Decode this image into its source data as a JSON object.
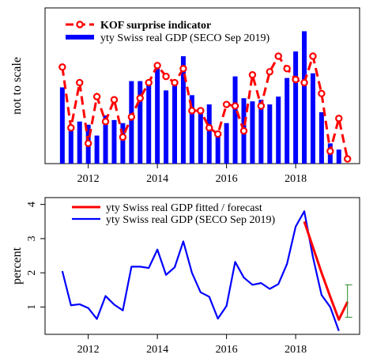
{
  "colors": {
    "kof": "#ff0000",
    "gdp": "#0000ff",
    "fit": "#ff0000",
    "band": "#228b22",
    "axis": "#000000"
  },
  "chart_data": [
    {
      "id": "top",
      "type": "bar",
      "ylabel": "not to scale",
      "xlim": [
        2010.75,
        2019.85
      ],
      "x_ticks": [
        2012,
        2014,
        2016,
        2018
      ],
      "x_tick_labels": [
        "2012",
        "2014",
        "2016",
        "2018"
      ],
      "ylim": [
        0,
        100
      ],
      "legend": {
        "placement": "top-left",
        "entries": [
          {
            "label": "KOF surprise indicator",
            "series": "kof",
            "bold": true
          },
          {
            "label": "yty Swiss real GDP (SECO Sep 2019)",
            "series": "gdp",
            "bold": false
          }
        ]
      },
      "x": [
        2011.25,
        2011.5,
        2011.75,
        2012.0,
        2012.25,
        2012.5,
        2012.75,
        2013.0,
        2013.25,
        2013.5,
        2013.75,
        2014.0,
        2014.25,
        2014.5,
        2014.75,
        2015.0,
        2015.25,
        2015.5,
        2015.75,
        2016.0,
        2016.25,
        2016.5,
        2016.75,
        2017.0,
        2017.25,
        2017.5,
        2017.75,
        2018.0,
        2018.25,
        2018.5,
        2018.75,
        2019.0,
        2019.25
      ],
      "gdp_values": [
        49,
        25,
        27,
        25,
        18,
        31,
        28,
        26,
        53,
        53,
        52,
        62,
        47,
        52,
        69,
        44,
        36,
        38,
        18,
        26,
        56,
        42,
        40,
        41,
        38,
        43,
        55,
        72,
        85,
        58,
        33,
        13,
        9
      ],
      "kof_x": [
        2011.25,
        2011.5,
        2011.75,
        2012.0,
        2012.25,
        2012.5,
        2012.75,
        2013.0,
        2013.25,
        2013.5,
        2013.75,
        2014.0,
        2014.25,
        2014.5,
        2014.75,
        2015.0,
        2015.25,
        2015.5,
        2015.75,
        2016.0,
        2016.25,
        2016.5,
        2016.75,
        2017.0,
        2017.25,
        2017.5,
        2017.75,
        2018.0,
        2018.25,
        2018.5,
        2018.75,
        2019.0,
        2019.25,
        2019.5
      ],
      "kof_values": [
        62,
        23,
        52,
        13,
        43,
        27,
        41,
        17,
        30,
        42,
        52,
        63,
        56,
        52,
        61,
        34,
        34,
        23,
        19,
        38,
        37,
        21,
        57,
        37,
        59,
        69,
        61,
        54,
        52,
        69,
        45,
        8,
        29,
        3
      ]
    },
    {
      "id": "bottom",
      "type": "line",
      "ylabel": "percent",
      "xlim": [
        2010.75,
        2019.85
      ],
      "x_ticks": [
        2012,
        2014,
        2016,
        2018
      ],
      "x_tick_labels": [
        "2012",
        "2014",
        "2016",
        "2018"
      ],
      "ylim": [
        0.2,
        4.2
      ],
      "y_ticks": [
        1,
        2,
        3,
        4
      ],
      "y_tick_labels": [
        "1",
        "2",
        "3",
        "4"
      ],
      "legend": {
        "placement": "top-left",
        "entries": [
          {
            "label": "yty Swiss real GDP fitted / forecast",
            "series": "fit"
          },
          {
            "label": "yty Swiss real GDP (SECO Sep 2019)",
            "series": "gdp"
          }
        ]
      },
      "gdp_x": [
        2011.25,
        2011.5,
        2011.75,
        2012.0,
        2012.25,
        2012.5,
        2012.75,
        2013.0,
        2013.25,
        2013.5,
        2013.75,
        2014.0,
        2014.25,
        2014.5,
        2014.75,
        2015.0,
        2015.25,
        2015.5,
        2015.75,
        2016.0,
        2016.25,
        2016.5,
        2016.75,
        2017.0,
        2017.25,
        2017.5,
        2017.75,
        2018.0,
        2018.25,
        2018.5,
        2018.75,
        2019.0,
        2019.25
      ],
      "gdp_values": [
        2.05,
        1.05,
        1.08,
        0.97,
        0.65,
        1.32,
        1.07,
        0.9,
        2.18,
        2.18,
        2.14,
        2.68,
        1.94,
        2.16,
        2.92,
        2.0,
        1.43,
        1.3,
        0.66,
        1.03,
        2.32,
        1.86,
        1.65,
        1.7,
        1.53,
        1.67,
        2.26,
        3.35,
        3.8,
        2.46,
        1.35,
        1.0,
        0.3
      ],
      "fit_x": [
        2018.25,
        2018.5,
        2018.75,
        2019.0,
        2019.25,
        2019.5
      ],
      "fit_values": [
        3.5,
        2.75,
        2.0,
        1.3,
        0.63,
        1.15
      ],
      "interval": {
        "x": 2019.5,
        "low": 0.7,
        "high": 1.65
      }
    }
  ]
}
